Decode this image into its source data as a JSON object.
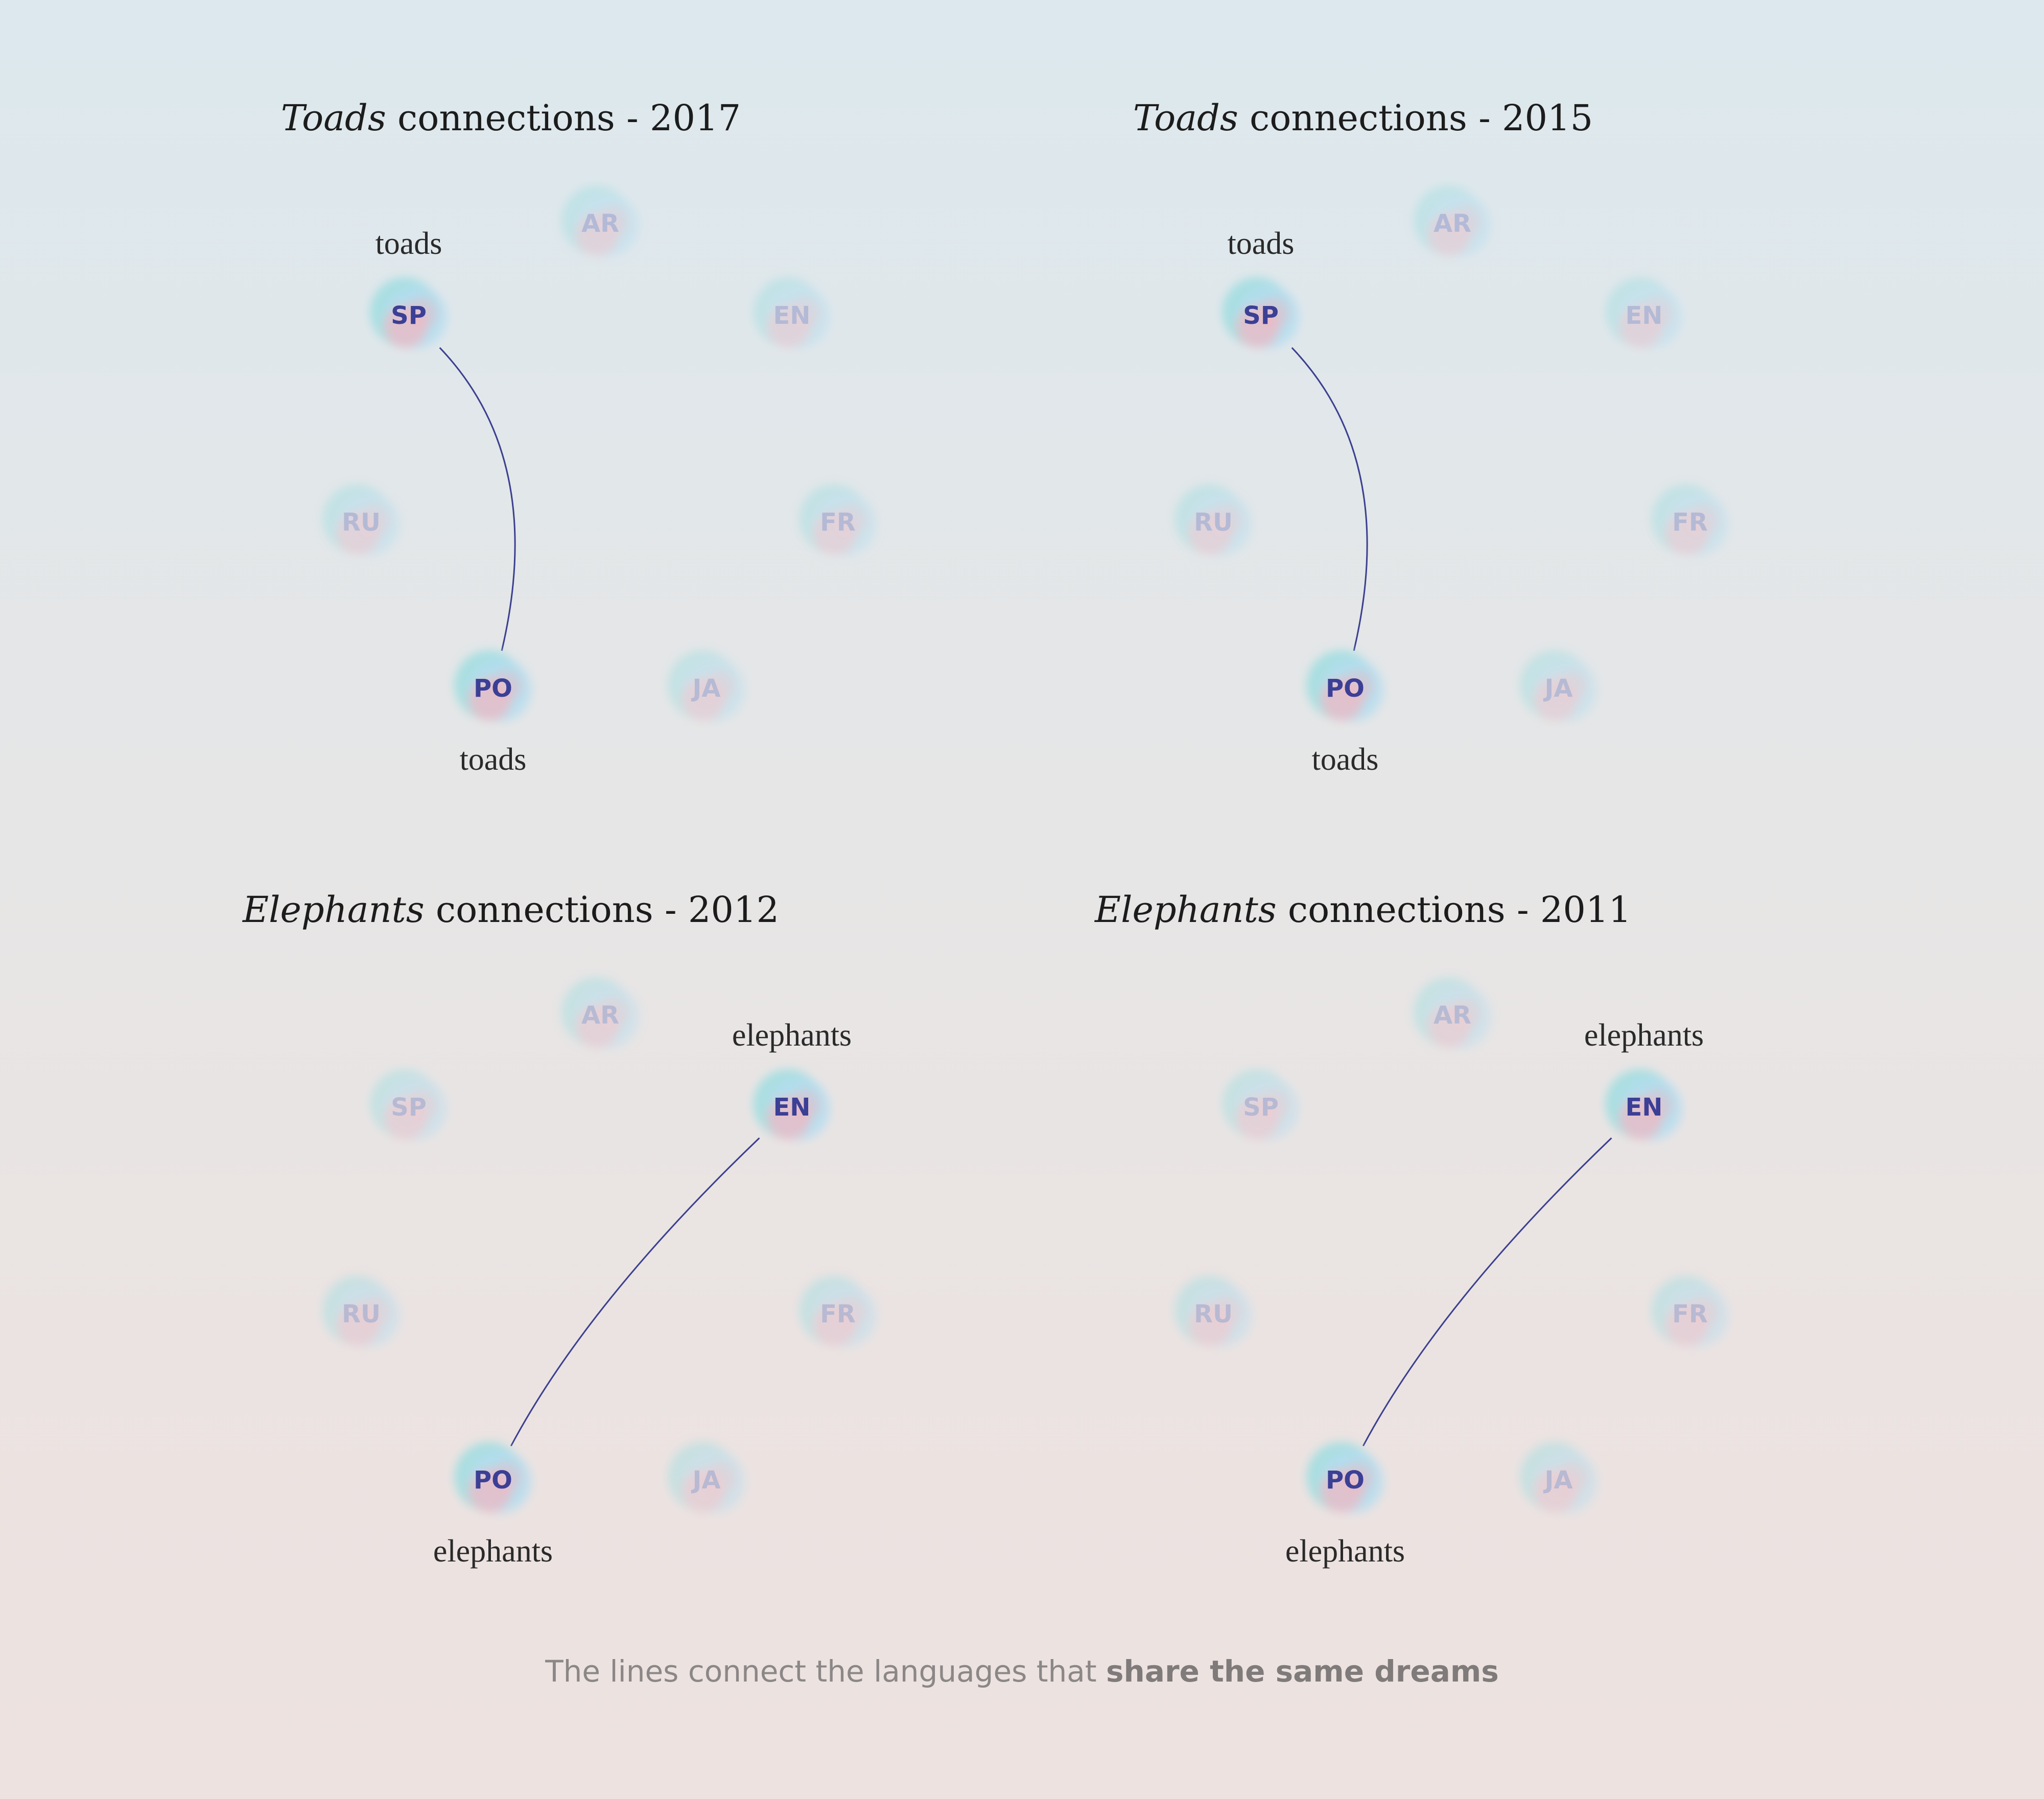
{
  "panels": [
    {
      "title_subject": "Toads",
      "title_rest": " connections - 2017",
      "languages": [
        "AR",
        "EN",
        "FR",
        "JA",
        "PO",
        "RU",
        "SP"
      ],
      "connections": [
        {
          "from": "SP",
          "to": "PO",
          "from_word": "toads",
          "to_word": "toads"
        }
      ]
    },
    {
      "title_subject": "Toads",
      "title_rest": " connections - 2015",
      "languages": [
        "AR",
        "EN",
        "FR",
        "JA",
        "PO",
        "RU",
        "SP"
      ],
      "connections": [
        {
          "from": "SP",
          "to": "PO",
          "from_word": "toads",
          "to_word": "toads"
        }
      ]
    },
    {
      "title_subject": "Elephants",
      "title_rest": " connections - 2012",
      "languages": [
        "AR",
        "EN",
        "FR",
        "JA",
        "PO",
        "RU",
        "SP"
      ],
      "connections": [
        {
          "from": "EN",
          "to": "PO",
          "from_word": "elephants",
          "to_word": "elephants"
        }
      ]
    },
    {
      "title_subject": "Elephants",
      "title_rest": " connections - 2011",
      "languages": [
        "AR",
        "EN",
        "FR",
        "JA",
        "PO",
        "RU",
        "SP"
      ],
      "connections": [
        {
          "from": "EN",
          "to": "PO",
          "from_word": "elephants",
          "to_word": "elephants"
        }
      ]
    }
  ],
  "caption": {
    "normal": "The lines connect the languages that ",
    "strong": "share the same dreams"
  },
  "colors": {
    "line": "#3b3f8f",
    "active_code": "#3b3f95",
    "inactive_code": "#9097c6",
    "blob_teal": "#9fdde0",
    "blob_pink": "#f1b6c0",
    "blob_blue": "#b6def0"
  }
}
